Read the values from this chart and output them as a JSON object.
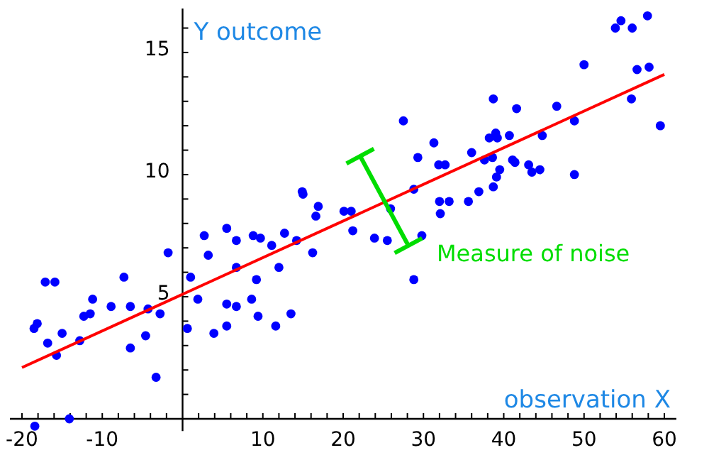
{
  "chart_data": {
    "type": "scatter",
    "xlabel": "observation X",
    "ylabel": "Y outcome",
    "xlim": [
      -21.5,
      61.5
    ],
    "ylim": [
      -0.5,
      16.8
    ],
    "xticks": [
      -20,
      {
        "value": -18,
        "label": null
      },
      {
        "value": -16,
        "label": null
      },
      {
        "value": -14,
        "label": null
      },
      {
        "value": -12,
        "label": null
      },
      -10,
      {
        "value": -8,
        "label": null
      },
      {
        "value": -6,
        "label": null
      },
      {
        "value": -4,
        "label": null
      },
      {
        "value": -2,
        "label": null
      },
      {
        "value": 2,
        "label": null
      },
      {
        "value": 4,
        "label": null
      },
      {
        "value": 6,
        "label": null
      },
      {
        "value": 8,
        "label": null
      },
      10,
      {
        "value": 12,
        "label": null
      },
      {
        "value": 14,
        "label": null
      },
      {
        "value": 16,
        "label": null
      },
      {
        "value": 18,
        "label": null
      },
      20,
      {
        "value": 22,
        "label": null
      },
      {
        "value": 24,
        "label": null
      },
      {
        "value": 26,
        "label": null
      },
      {
        "value": 28,
        "label": null
      },
      30,
      {
        "value": 32,
        "label": null
      },
      {
        "value": 34,
        "label": null
      },
      {
        "value": 36,
        "label": null
      },
      {
        "value": 38,
        "label": null
      },
      40,
      {
        "value": 42,
        "label": null
      },
      {
        "value": 44,
        "label": null
      },
      {
        "value": 46,
        "label": null
      },
      {
        "value": 48,
        "label": null
      },
      50,
      {
        "value": 52,
        "label": null
      },
      {
        "value": 54,
        "label": null
      },
      {
        "value": 56,
        "label": null
      },
      {
        "value": 58,
        "label": null
      },
      60
    ],
    "yticks": [
      {
        "value": 1,
        "label": null
      },
      {
        "value": 2,
        "label": null
      },
      {
        "value": 3,
        "label": null
      },
      {
        "value": 4,
        "label": null
      },
      5,
      {
        "value": 6,
        "label": null
      },
      {
        "value": 7,
        "label": null
      },
      {
        "value": 8,
        "label": null
      },
      {
        "value": 9,
        "label": null
      },
      10,
      {
        "value": 11,
        "label": null
      },
      {
        "value": 12,
        "label": null
      },
      {
        "value": 13,
        "label": null
      },
      {
        "value": 14,
        "label": null
      },
      15,
      {
        "value": 16,
        "label": null
      }
    ],
    "series": [
      {
        "marker": "circle",
        "color": "#0000ff",
        "x": [
          -17.1,
          -15.9,
          -18.5,
          -18.1,
          -16.8,
          -15.7,
          -15.0,
          -12.8,
          -12.3,
          -11.5,
          -11.2,
          -8.9,
          -7.3,
          -6.5,
          -6.5,
          -4.6,
          -4.3,
          -2.8,
          -1.8,
          -3.3,
          -18.4,
          -14.1,
          0.6,
          1.0,
          1.9,
          2.7,
          3.2,
          3.9,
          5.5,
          5.5,
          5.5,
          6.7,
          6.7,
          6.7,
          8.8,
          9.7,
          11.1,
          12.7,
          12.0,
          9.2,
          8.6,
          9.4,
          11.6,
          13.5,
          14.2,
          14.9,
          15.0,
          16.2,
          16.6,
          16.9,
          20.1,
          21.0,
          21.2,
          23.9,
          25.5,
          25.9,
          28.8,
          28.8,
          29.8,
          38.7,
          41.6,
          46.6,
          27.5,
          48.8,
          31.3,
          29.3,
          31.9,
          32.7,
          36.0,
          37.6,
          38.6,
          38.2,
          39.0,
          39.2,
          40.7,
          44.8,
          41.1,
          41.4,
          43.1,
          44.5,
          43.5,
          48.8,
          39.5,
          39.1,
          38.7,
          36.9,
          35.6,
          33.2,
          32.0,
          32.1,
          57.9,
          54.6,
          53.9,
          56.0,
          50.0,
          56.6,
          58.1,
          55.9,
          59.5
        ],
        "values": [
          5.6,
          5.6,
          3.7,
          3.9,
          3.1,
          2.6,
          3.5,
          3.2,
          4.2,
          4.3,
          4.9,
          4.6,
          5.8,
          4.6,
          2.9,
          3.4,
          4.5,
          4.3,
          6.8,
          1.7,
          -0.3,
          0.0,
          3.7,
          5.8,
          4.9,
          7.5,
          6.7,
          3.5,
          3.8,
          4.7,
          7.8,
          7.3,
          6.2,
          4.6,
          7.5,
          7.4,
          7.1,
          7.6,
          6.2,
          5.7,
          4.9,
          4.2,
          3.8,
          4.3,
          7.3,
          9.3,
          9.2,
          6.8,
          8.3,
          8.7,
          8.5,
          8.5,
          7.7,
          7.4,
          7.3,
          8.6,
          9.4,
          5.7,
          7.5,
          13.1,
          12.7,
          12.8,
          12.2,
          12.2,
          11.3,
          10.7,
          10.4,
          10.4,
          10.9,
          10.6,
          10.7,
          11.5,
          11.7,
          11.5,
          11.6,
          11.6,
          10.6,
          10.5,
          10.4,
          10.2,
          10.1,
          10.0,
          10.2,
          9.9,
          9.5,
          9.3,
          8.9,
          8.9,
          8.9,
          8.4,
          16.5,
          16.3,
          16.0,
          16.0,
          14.5,
          14.3,
          14.4,
          13.1,
          12.0
        ]
      },
      {
        "type": "line",
        "marker": "none",
        "color": "#ff0000",
        "x": [
          -20,
          60
        ],
        "values": [
          2.1,
          14.1
        ]
      }
    ],
    "annotations": [
      "Measure of noise"
    ]
  }
}
